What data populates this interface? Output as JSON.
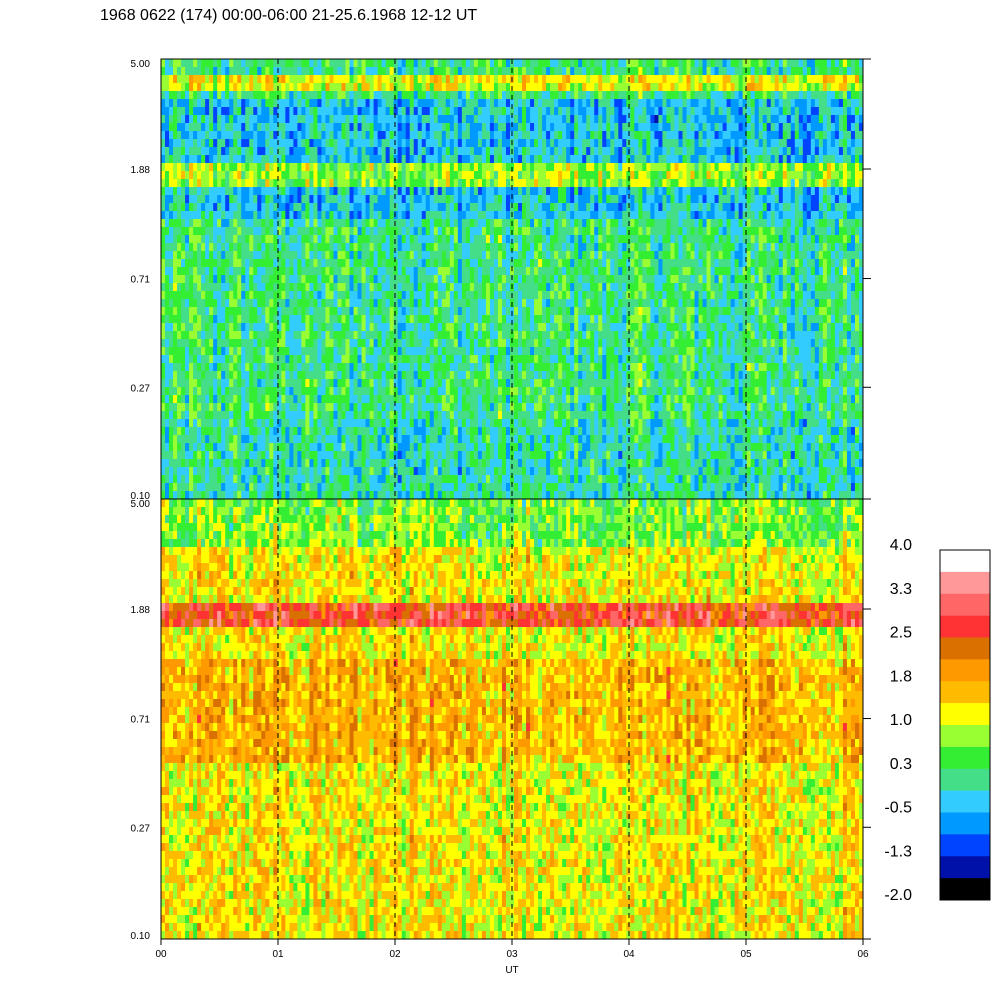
{
  "title": "1968 0622 (174) 00:00-06:00 21-25.6.1968  12-12 UT",
  "chart_data": {
    "type": "heatmap",
    "panels": [
      {
        "name": "",
        "y_ticks": [
          "5.00",
          "1.88",
          "0.71",
          "0.27",
          "0.10"
        ],
        "ylim": [
          0.1,
          5.0
        ],
        "y_scale": "log"
      },
      {
        "name": "",
        "y_ticks": [
          "5.00",
          "1.88",
          "0.71",
          "0.27",
          "0.10"
        ],
        "ylim": [
          0.1,
          5.0
        ],
        "y_scale": "log"
      }
    ],
    "x_ticks": [
      "00",
      "01",
      "02",
      "03",
      "04",
      "05",
      "06"
    ],
    "xlabel": "UT",
    "xlim": [
      0,
      6
    ],
    "vertical_dashed_lines_at": [
      1,
      2,
      3,
      4,
      5
    ],
    "colorbar": {
      "labels": [
        "4.0",
        "3.3",
        "2.5",
        "1.8",
        "1.0",
        "0.3",
        "-0.5",
        "-1.3",
        "-2.0"
      ],
      "colors": [
        "#ffffff",
        "#ff9999",
        "#ff6666",
        "#ff3333",
        "#d97000",
        "#ff9900",
        "#ffbb00",
        "#ffff00",
        "#99ff33",
        "#33ee33",
        "#44dd88",
        "#33ccff",
        "#0099ff",
        "#0044ff",
        "#0011aa",
        "#000000"
      ],
      "range": [
        -2.0,
        4.0
      ]
    }
  }
}
